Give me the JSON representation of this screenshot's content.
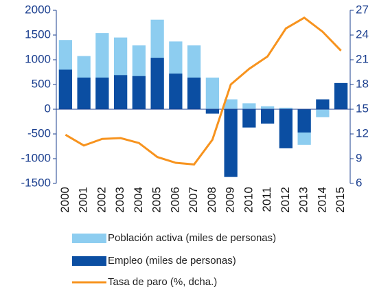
{
  "chart_data": {
    "type": "bar",
    "categories": [
      "2000",
      "2001",
      "2002",
      "2003",
      "2004",
      "2005",
      "2006",
      "2007",
      "2008",
      "2009",
      "2010",
      "2011",
      "2012",
      "2013",
      "2014",
      "2015"
    ],
    "series": [
      {
        "name": "Población activa (miles de personas)",
        "color": "#8dcdf0",
        "type": "bar",
        "values": [
          1400,
          1075,
          1540,
          1450,
          1290,
          1810,
          1370,
          1290,
          640,
          200,
          120,
          60,
          30,
          -720,
          -160,
          0
        ]
      },
      {
        "name": "Empleo (miles de personas)",
        "color": "#0b4ea2",
        "type": "bar",
        "values": [
          800,
          640,
          640,
          690,
          670,
          1040,
          720,
          640,
          -90,
          -1370,
          -370,
          -290,
          -790,
          -470,
          200,
          530
        ]
      },
      {
        "name": "Tasa de paro (%, dcha.)",
        "color": "#f7931e",
        "type": "line",
        "axis": "y2",
        "values": [
          11.9,
          10.6,
          11.4,
          11.5,
          10.9,
          9.2,
          8.5,
          8.3,
          11.3,
          18.0,
          19.9,
          21.4,
          24.8,
          26.1,
          24.4,
          22.1
        ]
      }
    ],
    "ylim": [
      -1500,
      2000
    ],
    "yticks": [
      -1500,
      -1000,
      -500,
      0,
      500,
      1000,
      1500,
      2000
    ],
    "y2lim": [
      6,
      27
    ],
    "y2ticks": [
      6,
      9,
      12,
      15,
      18,
      21,
      24,
      27
    ]
  }
}
